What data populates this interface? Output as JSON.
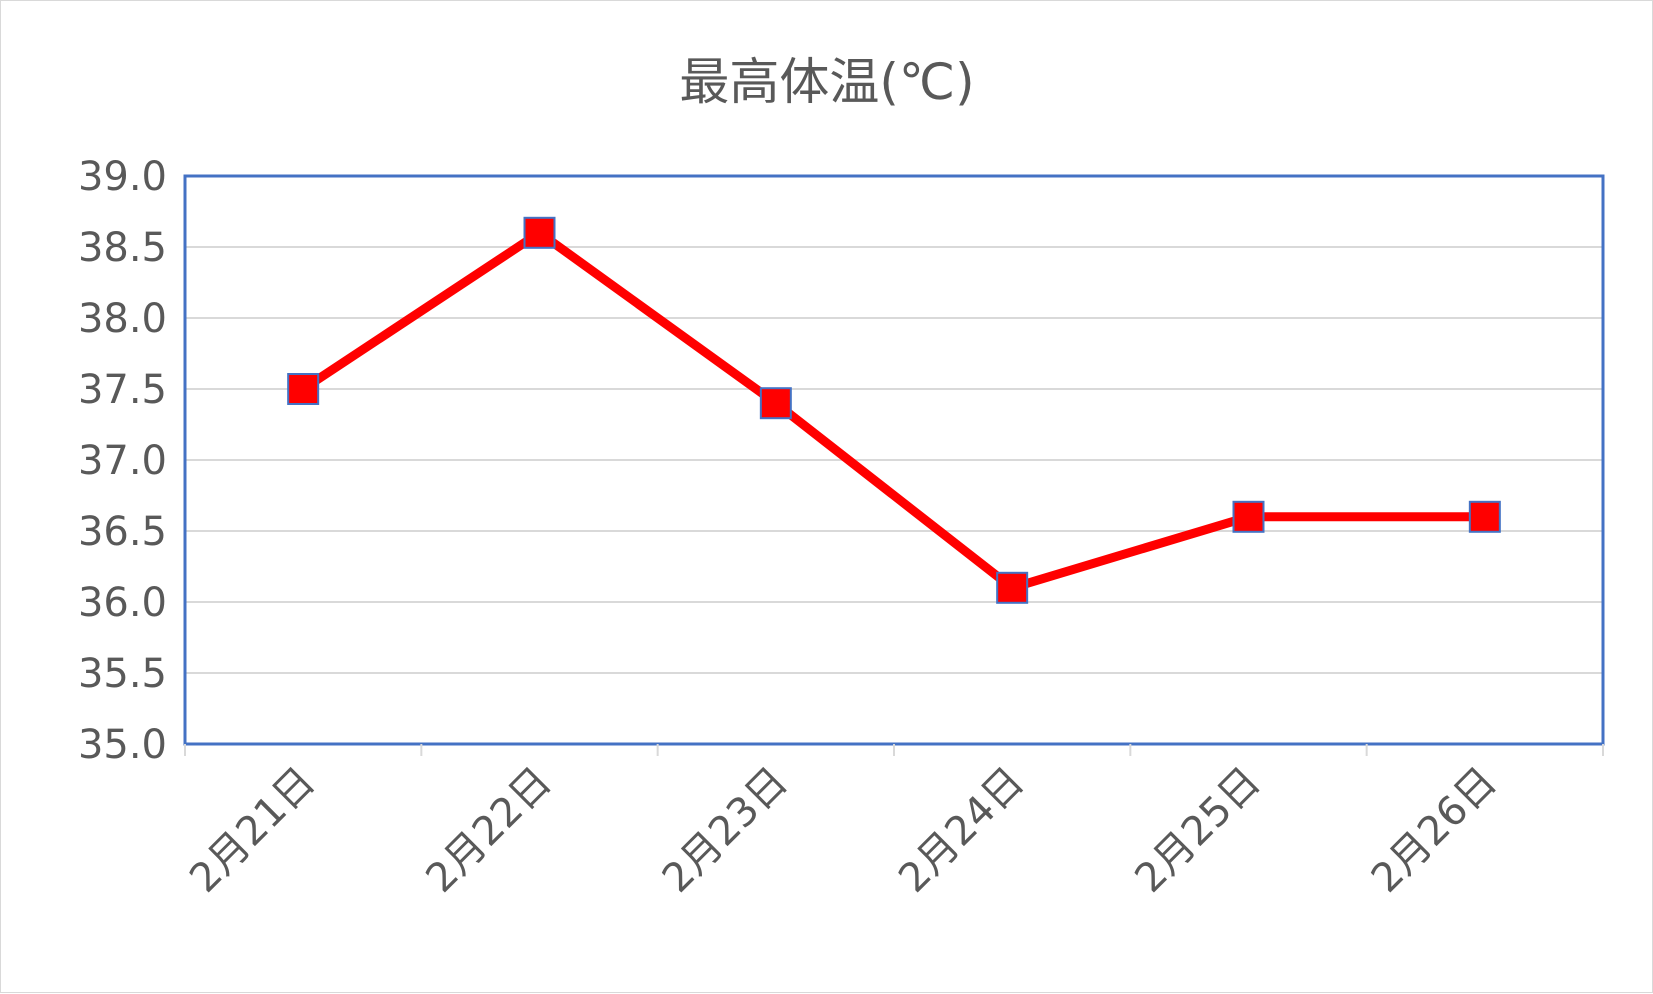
{
  "chart_data": {
    "type": "line",
    "title": "最高体温(℃)",
    "xlabel": "",
    "ylabel": "",
    "categories": [
      "2月21日",
      "2月22日",
      "2月23日",
      "2月24日",
      "2月25日",
      "2月26日"
    ],
    "series": [
      {
        "values": [
          37.5,
          38.6,
          37.4,
          36.1,
          36.6,
          36.6
        ],
        "color": "#ff0000",
        "marker": "square"
      }
    ],
    "ylim": [
      35.0,
      39.0
    ],
    "yticks": [
      "35.0",
      "35.5",
      "36.0",
      "36.5",
      "37.0",
      "37.5",
      "38.0",
      "38.5",
      "39.0"
    ],
    "grid": true,
    "legend": "none",
    "colors": {
      "line": "#ff0000",
      "marker_fill": "#ff0000",
      "marker_border": "#4472c4",
      "plot_border": "#4472c4",
      "gridline": "#d9d9d9",
      "text": "#595959"
    }
  }
}
